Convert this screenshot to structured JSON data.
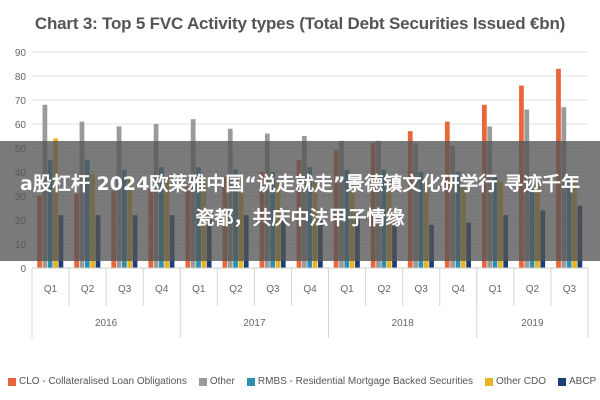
{
  "chart_data": {
    "type": "bar",
    "title": "Chart 3: Top 5 FVC Activity types (Total Debt Securities Issued €bn)",
    "xlabel": "",
    "ylabel": "",
    "ylim": [
      0,
      90
    ],
    "y_ticks": [
      0,
      10,
      20,
      30,
      40,
      50,
      60,
      70,
      80,
      90
    ],
    "grid": true,
    "legend_position": "bottom",
    "categories": [
      "Q1",
      "Q2",
      "Q3",
      "Q4",
      "Q1",
      "Q2",
      "Q3",
      "Q4",
      "Q1",
      "Q2",
      "Q3",
      "Q4",
      "Q1",
      "Q2",
      "Q3"
    ],
    "year_groups": [
      {
        "label": "2016",
        "start": 0,
        "count": 4
      },
      {
        "label": "2017",
        "start": 4,
        "count": 4
      },
      {
        "label": "2018",
        "start": 8,
        "count": 4
      },
      {
        "label": "2019",
        "start": 12,
        "count": 3
      }
    ],
    "series": [
      {
        "name": "CLO - Collateralised Loan Obligations",
        "color": "#e8663a",
        "values": [
          30,
          31,
          32,
          33,
          34,
          38,
          40,
          45,
          49,
          52,
          57,
          61,
          68,
          76,
          83
        ]
      },
      {
        "name": "Other",
        "color": "#9a9a9a",
        "values": [
          68,
          61,
          59,
          60,
          62,
          58,
          56,
          55,
          53,
          53,
          52,
          51,
          59,
          66,
          67
        ]
      },
      {
        "name": "RMBS - Residential Mortgage Backed Securities",
        "color": "#2e8fb0",
        "values": [
          45,
          45,
          41,
          42,
          42,
          41,
          40,
          42,
          41,
          41,
          40,
          40,
          38,
          37,
          38
        ]
      },
      {
        "name": "Other CDO",
        "color": "#e8b422",
        "values": [
          54,
          39,
          38,
          38,
          38,
          38,
          36,
          36,
          36,
          36,
          36,
          35,
          36,
          36,
          37
        ]
      },
      {
        "name": "ABCP",
        "color": "#1f3e78",
        "values": [
          22,
          22,
          22,
          22,
          22,
          22,
          20,
          20,
          22,
          20,
          18,
          19,
          22,
          24,
          26
        ]
      }
    ]
  },
  "overlay": {
    "text": "a股杠杆 2024欧莱雅中国“说走就走”景德镇文化研学行 寻迹千年瓷都，共庆中法甲子情缘"
  }
}
